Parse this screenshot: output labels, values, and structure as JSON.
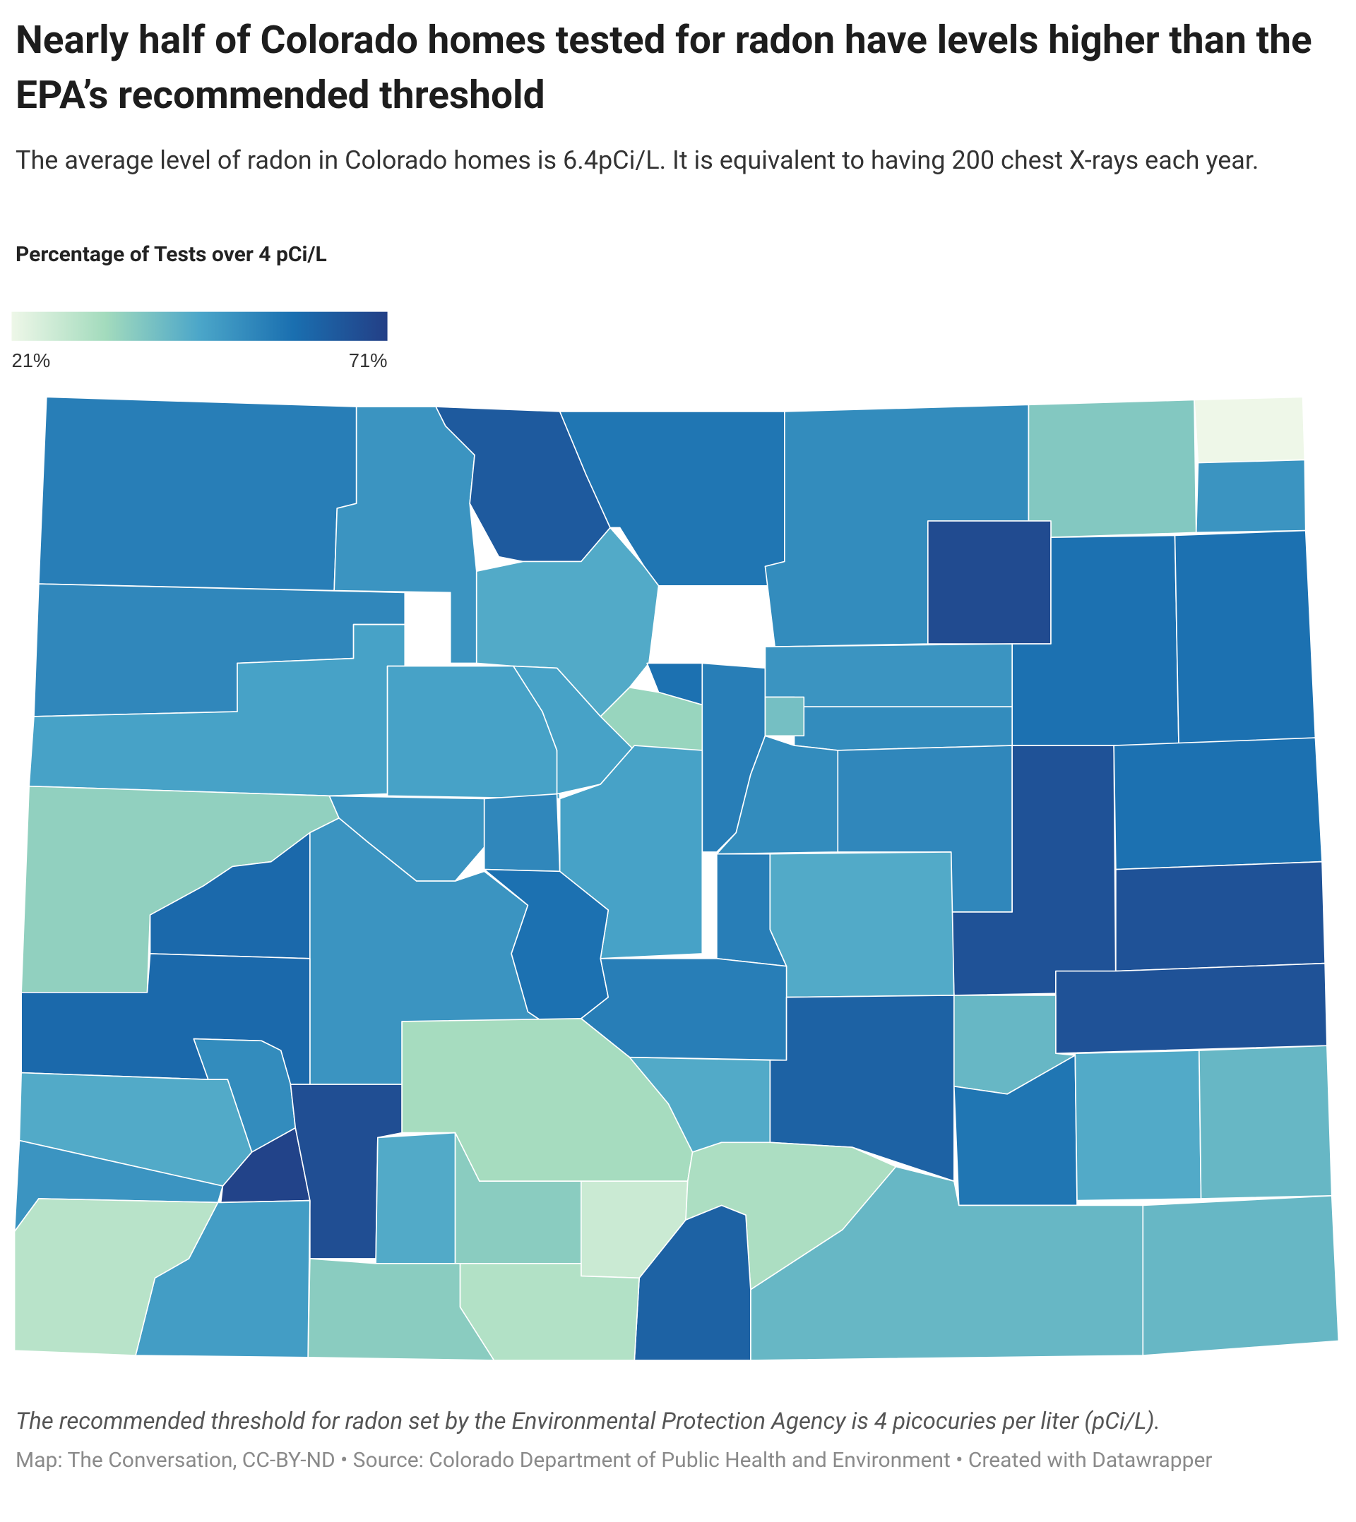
{
  "chart_data": {
    "type": "choropleth",
    "title": "Nearly half of Colorado homes tested for radon have levels higher than the EPA’s recommended threshold",
    "subtitle": "The average level of radon in Colorado homes is 6.4pCi/L. It is equivalent to having 200 chest X-rays each year.",
    "legend_title": "Percentage of Tests over 4 pCi/L",
    "colorscale": {
      "min": {
        "value": 21,
        "label": "21%"
      },
      "max": {
        "value": 71,
        "label": "71%"
      },
      "colors": [
        "#eef7e8",
        "#a3dbbd",
        "#4ba6c9",
        "#1a6fb0",
        "#233f86"
      ]
    },
    "values": [
      55,
      50,
      64,
      57,
      52,
      38,
      21,
      50,
      68,
      58,
      58,
      53,
      47,
      45,
      47,
      47,
      58,
      35,
      55,
      50,
      52,
      40,
      52,
      53,
      66,
      58,
      66,
      66,
      36,
      60,
      50,
      53,
      47,
      50,
      58,
      55,
      45,
      55,
      62,
      42,
      57,
      45,
      42,
      60,
      52,
      45,
      50,
      70,
      67,
      33,
      45,
      45,
      37,
      27,
      32,
      42,
      42,
      62,
      31,
      37,
      48,
      30
    ],
    "note": "The recommended threshold for radon set by the Environmental Protection Agency is 4 picocuries per liter (pCi/L).",
    "byline": "Map: The Conversation, CC-BY-ND • Source: Colorado Department of Public Health and Environment • Created with Datawrapper"
  }
}
